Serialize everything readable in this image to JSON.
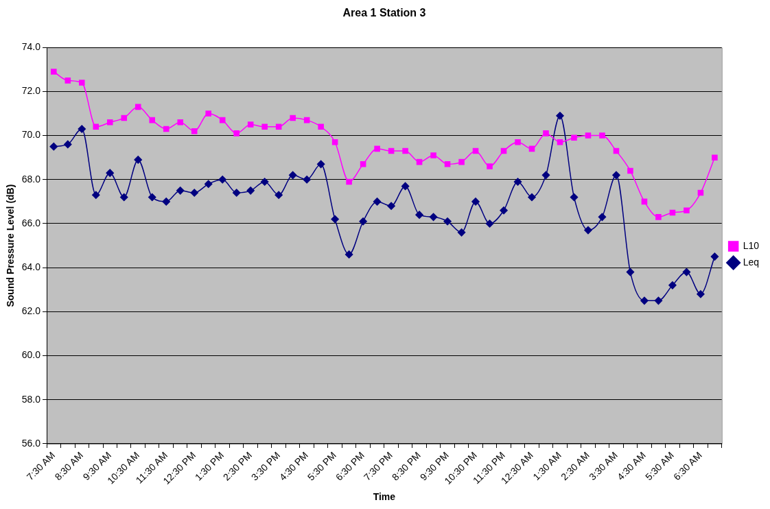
{
  "chart_data": {
    "type": "line",
    "title": "Area 1 Station 3",
    "xlabel": "Time",
    "ylabel": "Sound Pressure Level (dB)",
    "categories": [
      "7:30 AM",
      null,
      "8:30 AM",
      null,
      "9:30 AM",
      null,
      "10:30 AM",
      null,
      "11:30 AM",
      null,
      "12:30 PM",
      null,
      "1:30 PM",
      null,
      "2:30 PM",
      null,
      "3:30 PM",
      null,
      "4:30 PM",
      null,
      "5:30 PM",
      null,
      "6:30 PM",
      null,
      "7:30 PM",
      null,
      "8:30 PM",
      null,
      "9:30 PM",
      null,
      "10:30 PM",
      null,
      "11:30 PM",
      null,
      "12:30 AM",
      null,
      "1:30 AM",
      null,
      "2:30 AM",
      null,
      "3:30 AM",
      null,
      "4:30 AM",
      null,
      "5:30 AM",
      null,
      "6:30 AM",
      null
    ],
    "series": [
      {
        "name": "L10",
        "color": "#ff00ff",
        "marker": "square",
        "values": [
          72.9,
          72.5,
          72.4,
          70.4,
          70.6,
          70.8,
          71.3,
          70.7,
          70.3,
          70.6,
          70.2,
          71.0,
          70.7,
          70.1,
          70.5,
          70.4,
          70.4,
          70.8,
          70.7,
          70.4,
          69.7,
          67.9,
          68.7,
          69.4,
          69.3,
          69.3,
          68.8,
          69.1,
          68.7,
          68.8,
          69.3,
          68.6,
          69.3,
          69.7,
          69.4,
          70.1,
          69.7,
          69.9,
          70.0,
          70.0,
          69.3,
          68.4,
          67.0,
          66.3,
          66.5,
          66.6,
          67.4,
          69.0
        ]
      },
      {
        "name": "Leq",
        "color": "#000080",
        "marker": "diamond",
        "values": [
          69.5,
          69.6,
          70.3,
          67.3,
          68.3,
          67.2,
          68.9,
          67.2,
          67.0,
          67.5,
          67.4,
          67.8,
          68.0,
          67.4,
          67.5,
          67.9,
          67.3,
          68.2,
          68.0,
          68.7,
          66.2,
          64.6,
          66.1,
          67.0,
          66.8,
          67.7,
          66.4,
          66.3,
          66.1,
          65.6,
          67.0,
          66.0,
          66.6,
          67.9,
          67.2,
          68.2,
          70.9,
          67.2,
          65.7,
          66.3,
          68.2,
          63.8,
          62.5,
          62.5,
          63.2,
          63.8,
          62.8,
          64.5
        ]
      }
    ],
    "ylim": [
      56,
      74
    ],
    "yticks": [
      {
        "value": 56,
        "label": "56.0"
      },
      {
        "value": 58,
        "label": "58.0"
      },
      {
        "value": 60,
        "label": "60.0"
      },
      {
        "value": 62,
        "label": "62.0"
      },
      {
        "value": 64,
        "label": "64.0"
      },
      {
        "value": 66,
        "label": "66.0"
      },
      {
        "value": 68,
        "label": "68.0"
      },
      {
        "value": 70,
        "label": "70.0"
      },
      {
        "value": 72,
        "label": "72.0"
      },
      {
        "value": 74,
        "label": "74.0"
      }
    ],
    "grid": "y",
    "legend": "right",
    "line_style": "solid"
  }
}
